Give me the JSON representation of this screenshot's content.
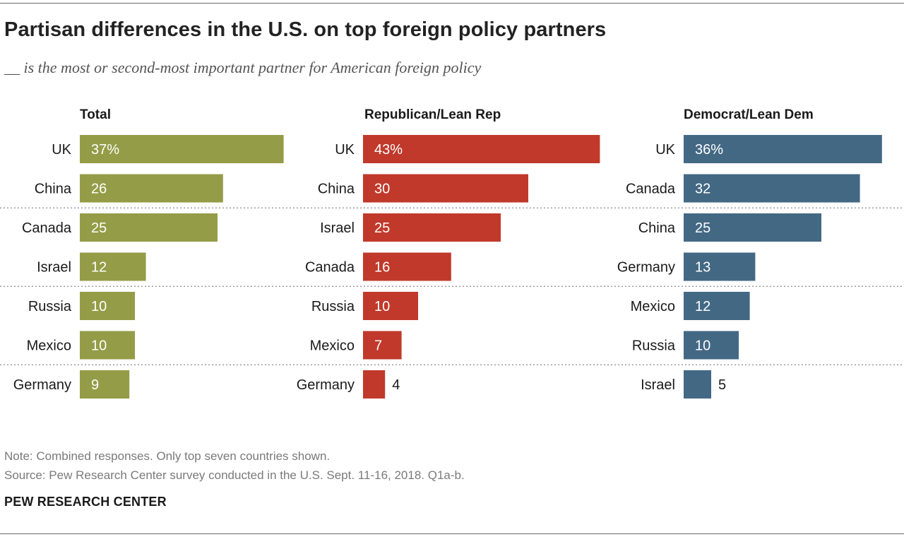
{
  "title": "Partisan differences in the U.S. on top foreign policy partners",
  "subtitle": "__ is the most or second-most important partner for American foreign policy",
  "note": "Note: Combined responses. Only top seven countries shown.",
  "source": "Source: Pew Research Center survey conducted in the U.S. Sept. 11-16, 2018. Q1a-b.",
  "brand": "PEW RESEARCH CENTER",
  "chart_data": [
    {
      "type": "bar",
      "orientation": "horizontal",
      "title": "Total",
      "color": "#949c47",
      "categories": [
        "UK",
        "China",
        "Canada",
        "Israel",
        "Russia",
        "Mexico",
        "Germany"
      ],
      "values": [
        37,
        26,
        25,
        12,
        10,
        10,
        9
      ],
      "value_labels": [
        "37%",
        "26",
        "25",
        "12",
        "10",
        "10",
        "9"
      ]
    },
    {
      "type": "bar",
      "orientation": "horizontal",
      "title": "Republican/Lean Rep",
      "color": "#c0392b",
      "categories": [
        "UK",
        "China",
        "Israel",
        "Canada",
        "Russia",
        "Mexico",
        "Germany"
      ],
      "values": [
        43,
        30,
        25,
        16,
        10,
        7,
        4
      ],
      "value_labels": [
        "43%",
        "30",
        "25",
        "16",
        "10",
        "7",
        "4"
      ]
    },
    {
      "type": "bar",
      "orientation": "horizontal",
      "title": "Democrat/Lean Dem",
      "color": "#436884",
      "categories": [
        "UK",
        "Canada",
        "China",
        "Germany",
        "Mexico",
        "Russia",
        "Israel"
      ],
      "values": [
        36,
        32,
        25,
        13,
        12,
        10,
        5
      ],
      "value_labels": [
        "36%",
        "32",
        "25",
        "13",
        "12",
        "10",
        "5"
      ]
    }
  ]
}
